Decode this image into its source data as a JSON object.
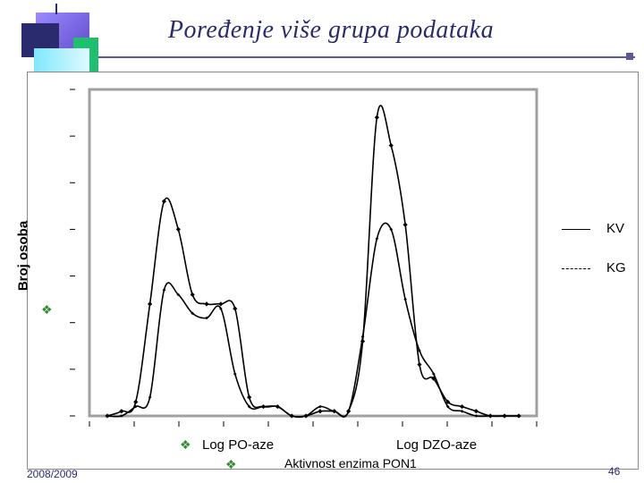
{
  "slide": {
    "title": "Poređenje više grupa podataka",
    "date": "2008/2009",
    "page": "46"
  },
  "colors": {
    "accent": "#2a2a6e",
    "bullet": "#2e8b2e",
    "deco_purple": "#7b68ee",
    "deco_green": "#1fbf6f",
    "deco_cyan": "#a8f0ff"
  },
  "chart_data": {
    "type": "line",
    "xlabel_left": "Log PO-aze",
    "xlabel_right": "Log DZO-aze",
    "xlabel_bottom": "Aktivnost enzima PON1",
    "ylabel": "Broj osoba",
    "x": [
      1,
      2,
      3,
      4,
      5,
      6,
      7,
      8,
      9,
      10,
      11,
      12,
      13,
      14,
      15,
      16,
      17,
      18,
      19,
      20,
      21,
      22,
      23,
      24,
      25,
      26,
      27,
      28,
      29,
      30
    ],
    "series": [
      {
        "name": "KV",
        "style": "solid",
        "values": [
          0,
          0.1,
          0.3,
          2.4,
          4.6,
          4.0,
          2.6,
          2.4,
          2.4,
          2.3,
          0.4,
          0.2,
          0.2,
          0,
          0,
          0.1,
          0.1,
          0.1,
          1.6,
          6.4,
          5.8,
          4.1,
          1.1,
          0.8,
          0.3,
          0.2,
          0.1,
          0,
          0,
          0
        ]
      },
      {
        "name": "KG",
        "style": "dashed",
        "values": [
          0,
          0,
          0.2,
          0.4,
          2.7,
          2.6,
          2.2,
          2.1,
          2.3,
          0.9,
          0.2,
          0.2,
          0.2,
          0,
          0,
          0.2,
          0.1,
          0.1,
          1.7,
          3.8,
          4.0,
          2.5,
          1.4,
          0.9,
          0.2,
          0.1,
          0,
          0,
          0,
          0
        ]
      }
    ]
  }
}
